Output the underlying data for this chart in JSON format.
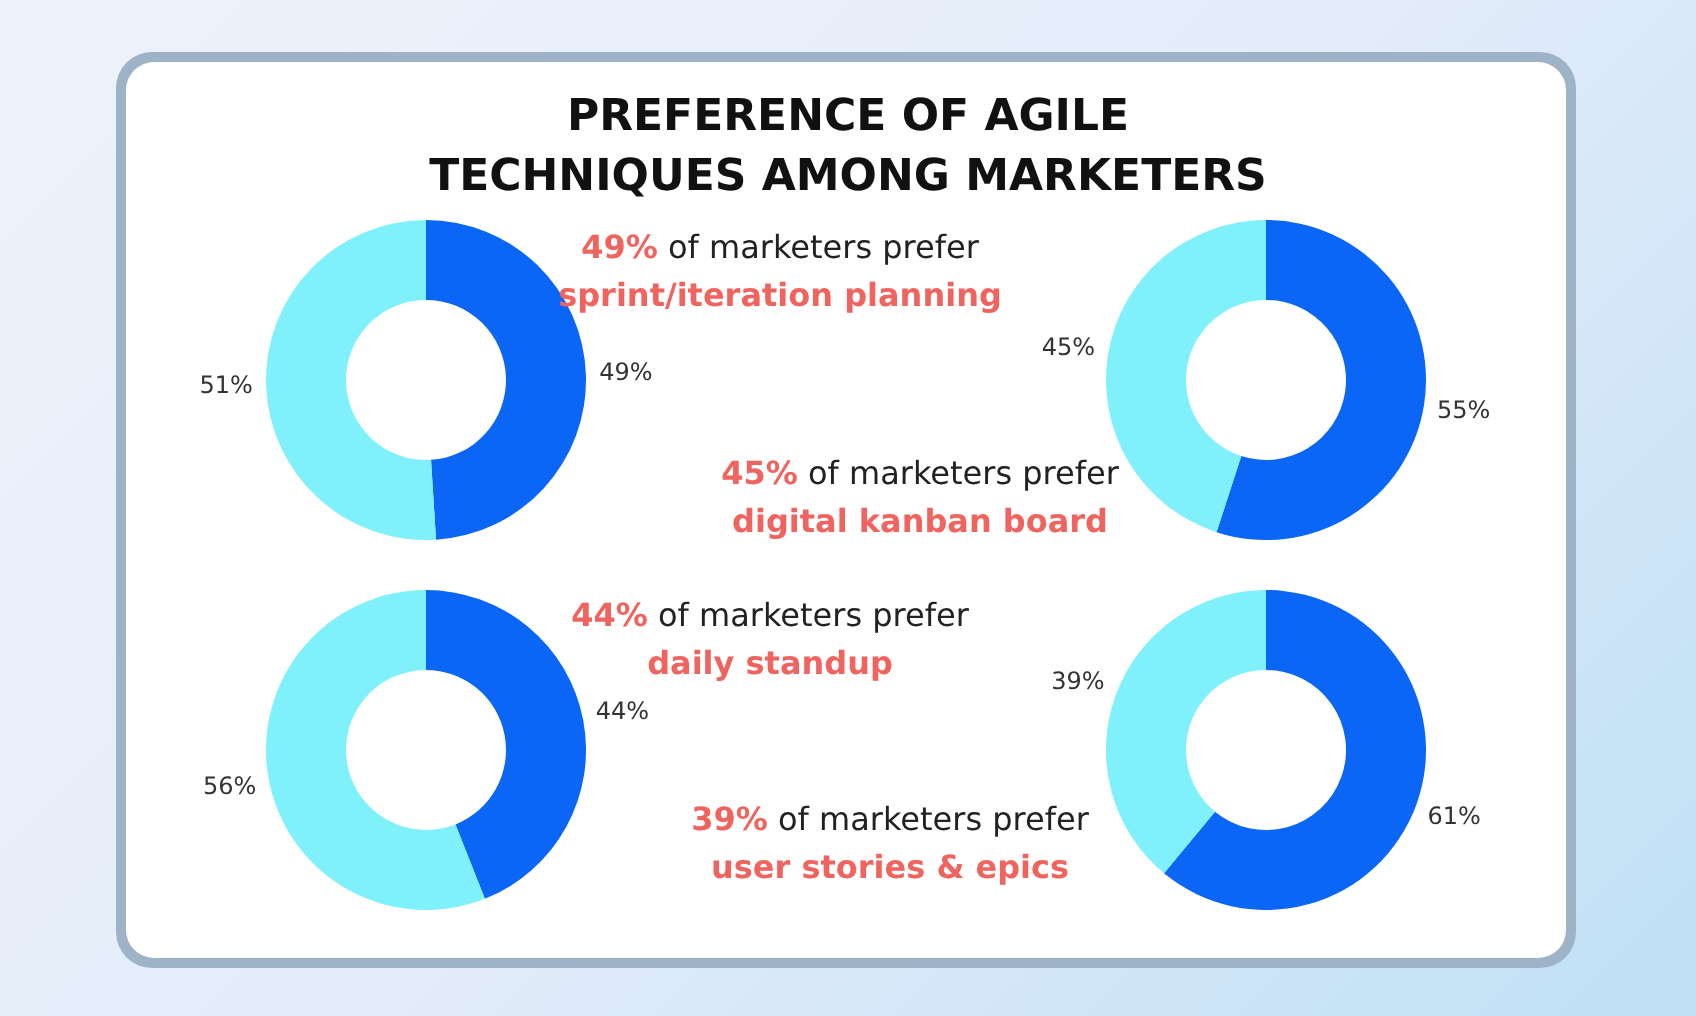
{
  "chart_data": [
    {
      "type": "donut",
      "title": "PREFERENCE OF AGILE TECHNIQUES AMONG MARKETERS",
      "categories": [
        null,
        null
      ],
      "values": [
        49,
        51
      ],
      "colors": [
        "#0b66f5",
        "#80f0fb"
      ],
      "value_labels": [
        "49%",
        "51%"
      ],
      "annotations": [
        "49% of marketers prefer",
        "sprint/iteration planning"
      ]
    },
    {
      "type": "donut",
      "categories": [
        null,
        null
      ],
      "values": [
        55,
        45
      ],
      "colors": [
        "#0b66f5",
        "#80f0fb"
      ],
      "value_labels": [
        "55%",
        "45%"
      ],
      "annotations": [
        "45% of marketers prefer",
        "digital kanban board"
      ]
    },
    {
      "type": "donut",
      "categories": [
        null,
        null
      ],
      "values": [
        44,
        56
      ],
      "colors": [
        "#0b66f5",
        "#80f0fb"
      ],
      "value_labels": [
        "44%",
        "56%"
      ],
      "annotations": [
        "44% of marketers prefer",
        "daily standup"
      ]
    },
    {
      "type": "donut",
      "categories": [
        null,
        null
      ],
      "values": [
        61,
        39
      ],
      "colors": [
        "#0b66f5",
        "#80f0fb"
      ],
      "value_labels": [
        "61%",
        "39%"
      ],
      "annotations": [
        "39% of marketers prefer",
        "user stories & epics"
      ]
    }
  ]
}
